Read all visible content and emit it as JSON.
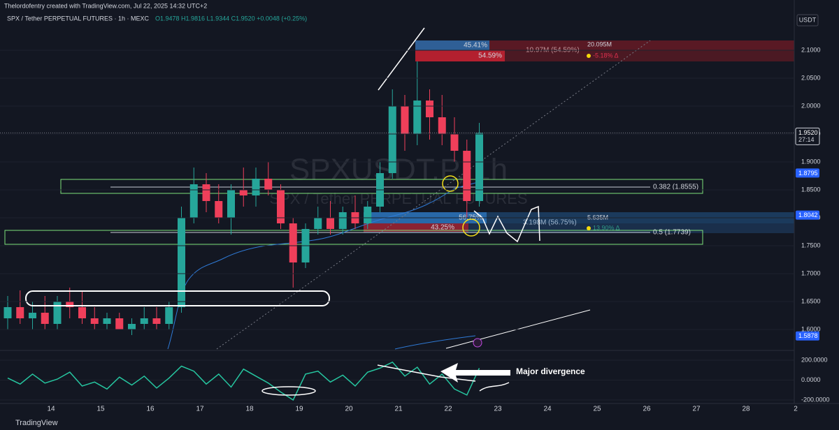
{
  "header": {
    "credit": "Thelordofentry created with TradingView.com, Jul 22, 2025 14:32 UTC+2",
    "symbol": "SPX / Tether PERPETUAL FUTURES · 1h · MEXC",
    "ohlc": "O1.9478 H1.9816 L1.9344 C1.9520 +0.0048 (+0.25%)",
    "currency": "USDT"
  },
  "watermark": {
    "ticker": "SPXUSDT.P, 1h",
    "name": "SPX / Tether PERPETUAL FUTURES"
  },
  "annotations": {
    "fib_382": "0.382 (1.8555)",
    "fib_5": "0.5 (1.7739)",
    "upper_pct_a": "45.41%",
    "upper_pct_b": "54.59%",
    "upper_vol": "10.97M (54.59%)",
    "upper_total": "20.095M",
    "upper_delta": "-5.18% Δ",
    "lower_pct_a": "56.75%",
    "lower_pct_b": "43.25%",
    "lower_vol": "3.198M (56.75%)",
    "lower_total": "5.635M",
    "lower_delta": "13.90% Δ",
    "divergence": "Major divergence"
  },
  "footer": {
    "brand": "TradingView"
  },
  "chart_data": [
    {
      "type": "candlestick",
      "up_color": "#26a69a",
      "down_color": "#ef3f5a",
      "x": [
        13.0,
        13.25,
        13.5,
        13.75,
        14.0,
        14.25,
        14.5,
        14.75,
        15.0,
        15.25,
        15.5,
        15.75,
        16.0,
        16.25,
        16.5,
        16.75,
        17.0,
        17.25,
        17.5,
        17.75,
        18.0,
        18.25,
        18.5,
        18.75,
        19.0,
        19.25,
        19.5,
        19.75,
        20.0,
        20.25,
        20.5,
        20.75,
        21.0,
        21.25,
        21.5,
        21.75,
        22.0,
        22.25,
        22.5
      ],
      "open": [
        1.62,
        1.64,
        1.62,
        1.63,
        1.61,
        1.65,
        1.64,
        1.62,
        1.61,
        1.62,
        1.6,
        1.61,
        1.62,
        1.61,
        1.64,
        1.8,
        1.86,
        1.83,
        1.8,
        1.85,
        1.84,
        1.87,
        1.85,
        1.79,
        1.72,
        1.78,
        1.8,
        1.78,
        1.81,
        1.79,
        1.82,
        1.88,
        2.0,
        1.95,
        2.01,
        1.98,
        1.95,
        1.92,
        1.83
      ],
      "high": [
        1.66,
        1.67,
        1.65,
        1.66,
        1.66,
        1.675,
        1.67,
        1.64,
        1.63,
        1.63,
        1.62,
        1.64,
        1.64,
        1.65,
        1.82,
        1.89,
        1.88,
        1.86,
        1.86,
        1.89,
        1.89,
        1.9,
        1.86,
        1.8,
        1.79,
        1.82,
        1.83,
        1.82,
        1.84,
        1.83,
        1.9,
        2.03,
        2.02,
        2.08,
        2.03,
        2.02,
        1.98,
        1.94,
        1.97
      ],
      "low": [
        1.6,
        1.61,
        1.6,
        1.6,
        1.6,
        1.62,
        1.61,
        1.6,
        1.6,
        1.6,
        1.59,
        1.6,
        1.6,
        1.6,
        1.63,
        1.79,
        1.81,
        1.79,
        1.77,
        1.82,
        1.82,
        1.84,
        1.78,
        1.675,
        1.71,
        1.77,
        1.77,
        1.77,
        1.78,
        1.78,
        1.81,
        1.87,
        1.92,
        1.93,
        1.94,
        1.93,
        1.9,
        1.8,
        1.82
      ],
      "close": [
        1.64,
        1.62,
        1.63,
        1.61,
        1.65,
        1.64,
        1.62,
        1.61,
        1.62,
        1.6,
        1.61,
        1.62,
        1.61,
        1.64,
        1.8,
        1.86,
        1.83,
        1.8,
        1.85,
        1.84,
        1.87,
        1.85,
        1.79,
        1.72,
        1.78,
        1.8,
        1.78,
        1.81,
        1.79,
        1.82,
        1.88,
        2.0,
        1.95,
        2.01,
        1.98,
        1.95,
        1.92,
        1.83,
        1.952
      ],
      "ylim": [
        1.565,
        2.19
      ],
      "yticks": [
        {
          "value": 1.6,
          "label": "1.6000"
        },
        {
          "value": 1.65,
          "label": "1.6500"
        },
        {
          "value": 1.7,
          "label": "1.7000"
        },
        {
          "value": 1.75,
          "label": "1.7500"
        },
        {
          "value": 1.8,
          "label": "1.8000"
        },
        {
          "value": 1.85,
          "label": "1.8500"
        },
        {
          "value": 1.9,
          "label": "1.9000"
        },
        {
          "value": 1.95,
          "label": "1.9500"
        },
        {
          "value": 2.0,
          "label": "2.0000"
        },
        {
          "value": 2.05,
          "label": "2.0500"
        },
        {
          "value": 2.1,
          "label": "2.1000"
        }
      ],
      "price_tags": [
        {
          "value": 1.952,
          "label": "1.9520"
        },
        {
          "value": 1.8795,
          "label": "1.8795"
        },
        {
          "value": 1.8042,
          "label": "1.8042"
        },
        {
          "value": 1.5878,
          "label": "1.5878"
        }
      ],
      "countdown": "27:14",
      "xtick_labels": [
        "14",
        "15",
        "16",
        "17",
        "18",
        "19",
        "20",
        "21",
        "22",
        "23",
        "24",
        "25",
        "26",
        "27",
        "28",
        "2"
      ]
    },
    {
      "type": "line",
      "color": "#26c6a0",
      "values": [
        20,
        -40,
        60,
        -30,
        10,
        80,
        -60,
        -20,
        -90,
        30,
        -50,
        40,
        -80,
        20,
        140,
        90,
        -40,
        60,
        -70,
        110,
        40,
        -30,
        -120,
        -200,
        60,
        90,
        -20,
        50,
        -60,
        80,
        120,
        180,
        40,
        130,
        -40,
        60,
        -90,
        -150,
        120
      ],
      "ylim": [
        -235,
        277
      ],
      "yticks": [
        {
          "value": 200,
          "label": "200.0000"
        },
        {
          "value": 0,
          "label": "0.0000"
        },
        {
          "value": -200,
          "label": "-200.0000"
        }
      ]
    }
  ]
}
